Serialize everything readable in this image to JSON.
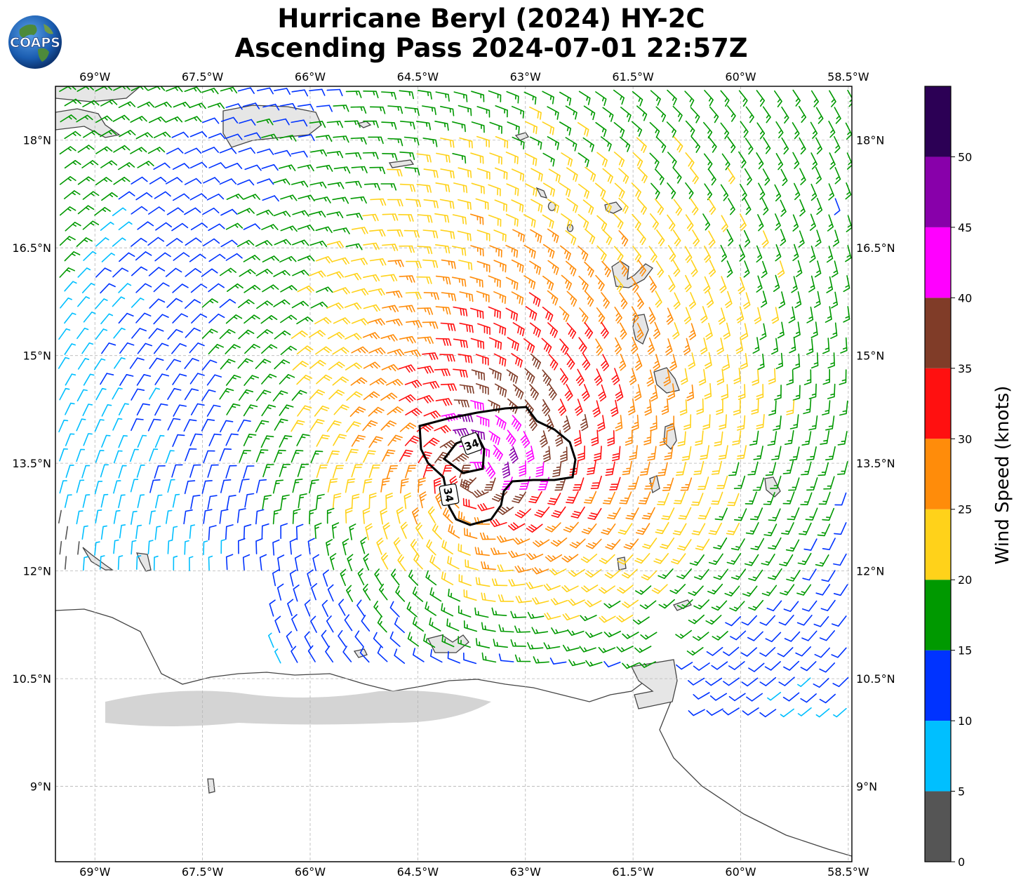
{
  "header": {
    "title_line1": "Hurricane Beryl (2024) HY-2C",
    "title_line2": "Ascending Pass 2024-07-01 22:57Z",
    "logo_text": "COAPS"
  },
  "map": {
    "lon_range": [
      -69.55,
      -58.45
    ],
    "lat_range": [
      7.95,
      18.75
    ],
    "lon_ticks": [
      {
        "value": -69.0,
        "label": "69°W"
      },
      {
        "value": -67.5,
        "label": "67.5°W"
      },
      {
        "value": -66.0,
        "label": "66°W"
      },
      {
        "value": -64.5,
        "label": "64.5°W"
      },
      {
        "value": -63.0,
        "label": "63°W"
      },
      {
        "value": -61.5,
        "label": "61.5°W"
      },
      {
        "value": -60.0,
        "label": "60°W"
      },
      {
        "value": -58.5,
        "label": "58.5°W"
      }
    ],
    "lat_ticks": [
      {
        "value": 18.0,
        "label": "18°N"
      },
      {
        "value": 16.5,
        "label": "16.5°N"
      },
      {
        "value": 15.0,
        "label": "15°N"
      },
      {
        "value": 13.5,
        "label": "13.5°N"
      },
      {
        "value": 12.0,
        "label": "12°N"
      },
      {
        "value": 10.5,
        "label": "10.5°N"
      },
      {
        "value": 9.0,
        "label": "9°N"
      }
    ],
    "storm_center": {
      "lon": -63.7,
      "lat": 13.3
    },
    "contour_labels": [
      "34",
      "34"
    ]
  },
  "colorbar": {
    "label": "Wind Speed (knots)",
    "bins": [
      {
        "min": 0,
        "max": 5,
        "color": "#555555"
      },
      {
        "min": 5,
        "max": 10,
        "color": "#00bfff"
      },
      {
        "min": 10,
        "max": 15,
        "color": "#0033ff"
      },
      {
        "min": 15,
        "max": 20,
        "color": "#009900"
      },
      {
        "min": 20,
        "max": 25,
        "color": "#ffd21a"
      },
      {
        "min": 25,
        "max": 30,
        "color": "#ff8c0a"
      },
      {
        "min": 30,
        "max": 35,
        "color": "#ff1010"
      },
      {
        "min": 35,
        "max": 40,
        "color": "#803c28"
      },
      {
        "min": 40,
        "max": 45,
        "color": "#ff00ff"
      },
      {
        "min": 45,
        "max": 50,
        "color": "#8800aa"
      },
      {
        "min": 50,
        "max": 55,
        "color": "#2c0055"
      }
    ],
    "tick_labels": [
      "0",
      "5",
      "10",
      "15",
      "20",
      "25",
      "30",
      "35",
      "40",
      "45",
      "50"
    ]
  }
}
